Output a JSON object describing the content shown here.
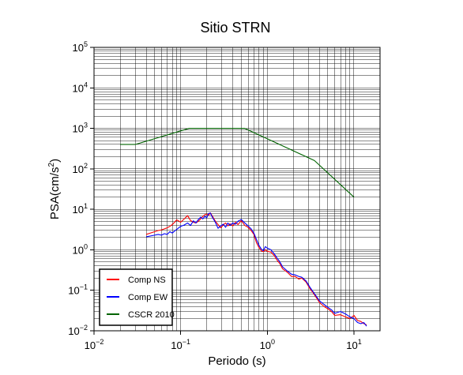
{
  "chart_data": {
    "type": "line",
    "title": "Sitio STRN",
    "xlabel": "Periodo (s)",
    "ylabel": "PSA(cm/s2)",
    "ylabel_base": "PSA(cm/s",
    "ylabel_sup": "2",
    "ylabel_end": ")",
    "x_scale": "log",
    "y_scale": "log",
    "xlim": [
      0.01,
      20
    ],
    "ylim": [
      0.01,
      100000
    ],
    "grid": true,
    "legend_position": "bottom-left",
    "x_ticks": [
      {
        "value": 0.01,
        "base": "10",
        "exp": "−2"
      },
      {
        "value": 0.1,
        "base": "10",
        "exp": "−1"
      },
      {
        "value": 1,
        "base": "10",
        "exp": "0"
      },
      {
        "value": 10,
        "base": "10",
        "exp": "1"
      }
    ],
    "y_ticks": [
      {
        "value": 0.01,
        "base": "10",
        "exp": "−2"
      },
      {
        "value": 0.1,
        "base": "10",
        "exp": "−1"
      },
      {
        "value": 1,
        "base": "10",
        "exp": "0"
      },
      {
        "value": 10,
        "base": "10",
        "exp": "1"
      },
      {
        "value": 100,
        "base": "10",
        "exp": "2"
      },
      {
        "value": 1000,
        "base": "10",
        "exp": "3"
      },
      {
        "value": 10000,
        "base": "10",
        "exp": "4"
      },
      {
        "value": 100000,
        "base": "10",
        "exp": "5"
      }
    ],
    "series": [
      {
        "name": "Comp NS",
        "color": "#ff0000",
        "x": [
          0.04,
          0.045,
          0.05,
          0.055,
          0.06,
          0.065,
          0.07,
          0.075,
          0.08,
          0.085,
          0.09,
          0.1,
          0.11,
          0.12,
          0.13,
          0.14,
          0.15,
          0.16,
          0.17,
          0.18,
          0.19,
          0.2,
          0.21,
          0.22,
          0.23,
          0.25,
          0.27,
          0.29,
          0.31,
          0.33,
          0.35,
          0.37,
          0.4,
          0.43,
          0.46,
          0.5,
          0.55,
          0.6,
          0.65,
          0.7,
          0.75,
          0.8,
          0.85,
          0.9,
          0.95,
          1.0,
          1.1,
          1.2,
          1.3,
          1.4,
          1.5,
          1.7,
          1.9,
          2.1,
          2.3,
          2.5,
          2.8,
          3.1,
          3.4,
          3.7,
          4.0,
          4.5,
          5.0,
          5.5,
          6.0,
          7.0,
          8.0,
          9.0,
          10.0,
          11.0,
          12.0,
          13.0,
          14.0
        ],
        "y": [
          2.4,
          2.6,
          2.8,
          3.0,
          3.1,
          3.3,
          3.5,
          3.8,
          4.2,
          4.8,
          5.5,
          4.8,
          5.8,
          7.0,
          5.3,
          4.8,
          4.6,
          5.1,
          5.8,
          6.6,
          7.4,
          7.6,
          7.1,
          8.2,
          7.0,
          5.2,
          4.2,
          3.5,
          4.1,
          4.6,
          3.9,
          4.4,
          3.9,
          4.8,
          4.2,
          5.3,
          4.0,
          3.6,
          3.0,
          2.4,
          1.5,
          1.15,
          0.95,
          0.9,
          1.0,
          0.92,
          0.88,
          0.72,
          0.55,
          0.45,
          0.34,
          0.28,
          0.22,
          0.22,
          0.19,
          0.2,
          0.16,
          0.11,
          0.085,
          0.065,
          0.05,
          0.04,
          0.035,
          0.03,
          0.024,
          0.025,
          0.022,
          0.02,
          0.024,
          0.018,
          0.017,
          0.015,
          0.014
        ]
      },
      {
        "name": "Comp EW",
        "color": "#0000ff",
        "x": [
          0.04,
          0.045,
          0.05,
          0.055,
          0.06,
          0.065,
          0.07,
          0.075,
          0.08,
          0.085,
          0.09,
          0.1,
          0.11,
          0.12,
          0.13,
          0.14,
          0.15,
          0.16,
          0.17,
          0.18,
          0.19,
          0.2,
          0.21,
          0.22,
          0.23,
          0.25,
          0.27,
          0.29,
          0.31,
          0.33,
          0.35,
          0.37,
          0.4,
          0.43,
          0.46,
          0.5,
          0.55,
          0.6,
          0.65,
          0.7,
          0.75,
          0.8,
          0.85,
          0.9,
          0.95,
          1.0,
          1.1,
          1.2,
          1.3,
          1.4,
          1.5,
          1.7,
          1.9,
          2.1,
          2.3,
          2.5,
          2.8,
          3.1,
          3.4,
          3.7,
          4.0,
          4.5,
          5.0,
          5.5,
          6.0,
          7.0,
          8.0,
          9.0,
          10.0,
          11.0,
          12.0,
          13.0,
          14.0
        ],
        "y": [
          2.1,
          2.2,
          2.3,
          2.4,
          2.3,
          2.5,
          2.4,
          2.8,
          2.6,
          2.9,
          3.2,
          3.8,
          4.1,
          4.6,
          4.0,
          5.2,
          4.6,
          5.6,
          6.4,
          5.8,
          6.7,
          6.2,
          7.9,
          8.1,
          6.6,
          4.9,
          3.4,
          3.9,
          4.3,
          3.6,
          4.6,
          4.0,
          4.6,
          4.3,
          5.1,
          5.6,
          4.6,
          3.9,
          3.3,
          2.6,
          1.8,
          1.3,
          1.05,
          0.95,
          1.2,
          1.1,
          1.0,
          0.8,
          0.62,
          0.5,
          0.38,
          0.3,
          0.25,
          0.24,
          0.22,
          0.21,
          0.17,
          0.12,
          0.09,
          0.07,
          0.055,
          0.045,
          0.038,
          0.033,
          0.027,
          0.03,
          0.026,
          0.022,
          0.02,
          0.016,
          0.015,
          0.016,
          0.013
        ]
      },
      {
        "name": "CSCR 2010",
        "color": "#006400",
        "x": [
          0.02,
          0.03,
          0.125,
          0.55,
          3.5,
          10.0
        ],
        "y": [
          400,
          400,
          1000,
          1000,
          160,
          20
        ]
      }
    ]
  }
}
